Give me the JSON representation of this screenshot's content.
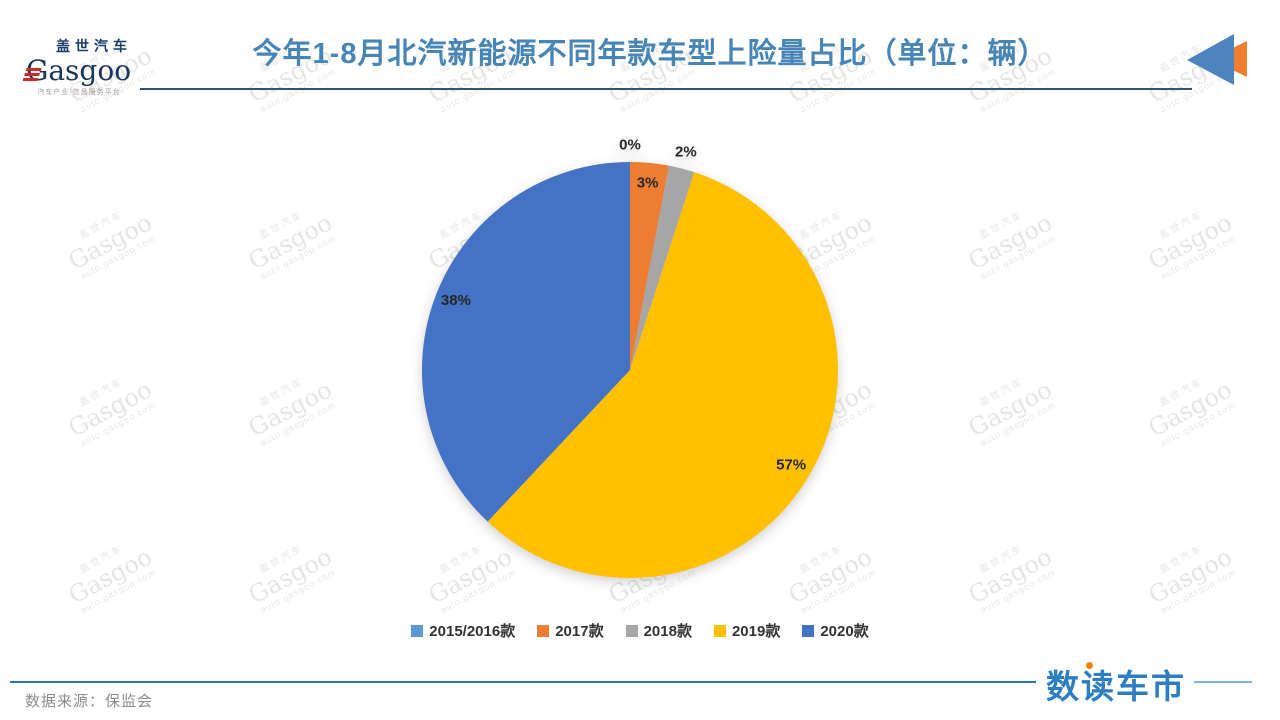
{
  "header": {
    "logo": {
      "cn": "盖世汽车",
      "en": "Gasgoo",
      "tagline": "汽车产业·信息服务平台"
    }
  },
  "chart_data": {
    "type": "pie",
    "title": "今年1-8月北汽新能源不同年款车型上险量占比（单位：辆）",
    "unit": "辆",
    "categories": [
      "2015/2016款",
      "2017款",
      "2018款",
      "2019款",
      "2020款"
    ],
    "values": [
      0,
      3,
      2,
      57,
      38
    ],
    "percent_labels": [
      "0%",
      "3%",
      "2%",
      "57%",
      "38%"
    ],
    "colors": [
      "#5B9BD5",
      "#ED7D31",
      "#A6A6A6",
      "#FFC000",
      "#4472C4"
    ],
    "legend_position": "bottom",
    "start_angle_deg": 0,
    "direction": "clockwise",
    "label_color": "#262626"
  },
  "footer": {
    "source": "数据来源：保监会",
    "brand": "数读车市"
  },
  "watermark": {
    "line1": "盖世汽车",
    "line2": "Gasgoo",
    "line3": "auto.gasgoo.com"
  },
  "icons": {
    "rewind_blue": "#4D84BE",
    "rewind_orange": "#ED7D31",
    "logo_stripe_red": "#CE2B28"
  },
  "theme": {
    "title-color": "#4685B5",
    "header-rule-color": "#33536F",
    "footer-rule-color": "#2E74B5",
    "brand-color": "#2B7EC1",
    "source-color": "#8C8C8C"
  }
}
